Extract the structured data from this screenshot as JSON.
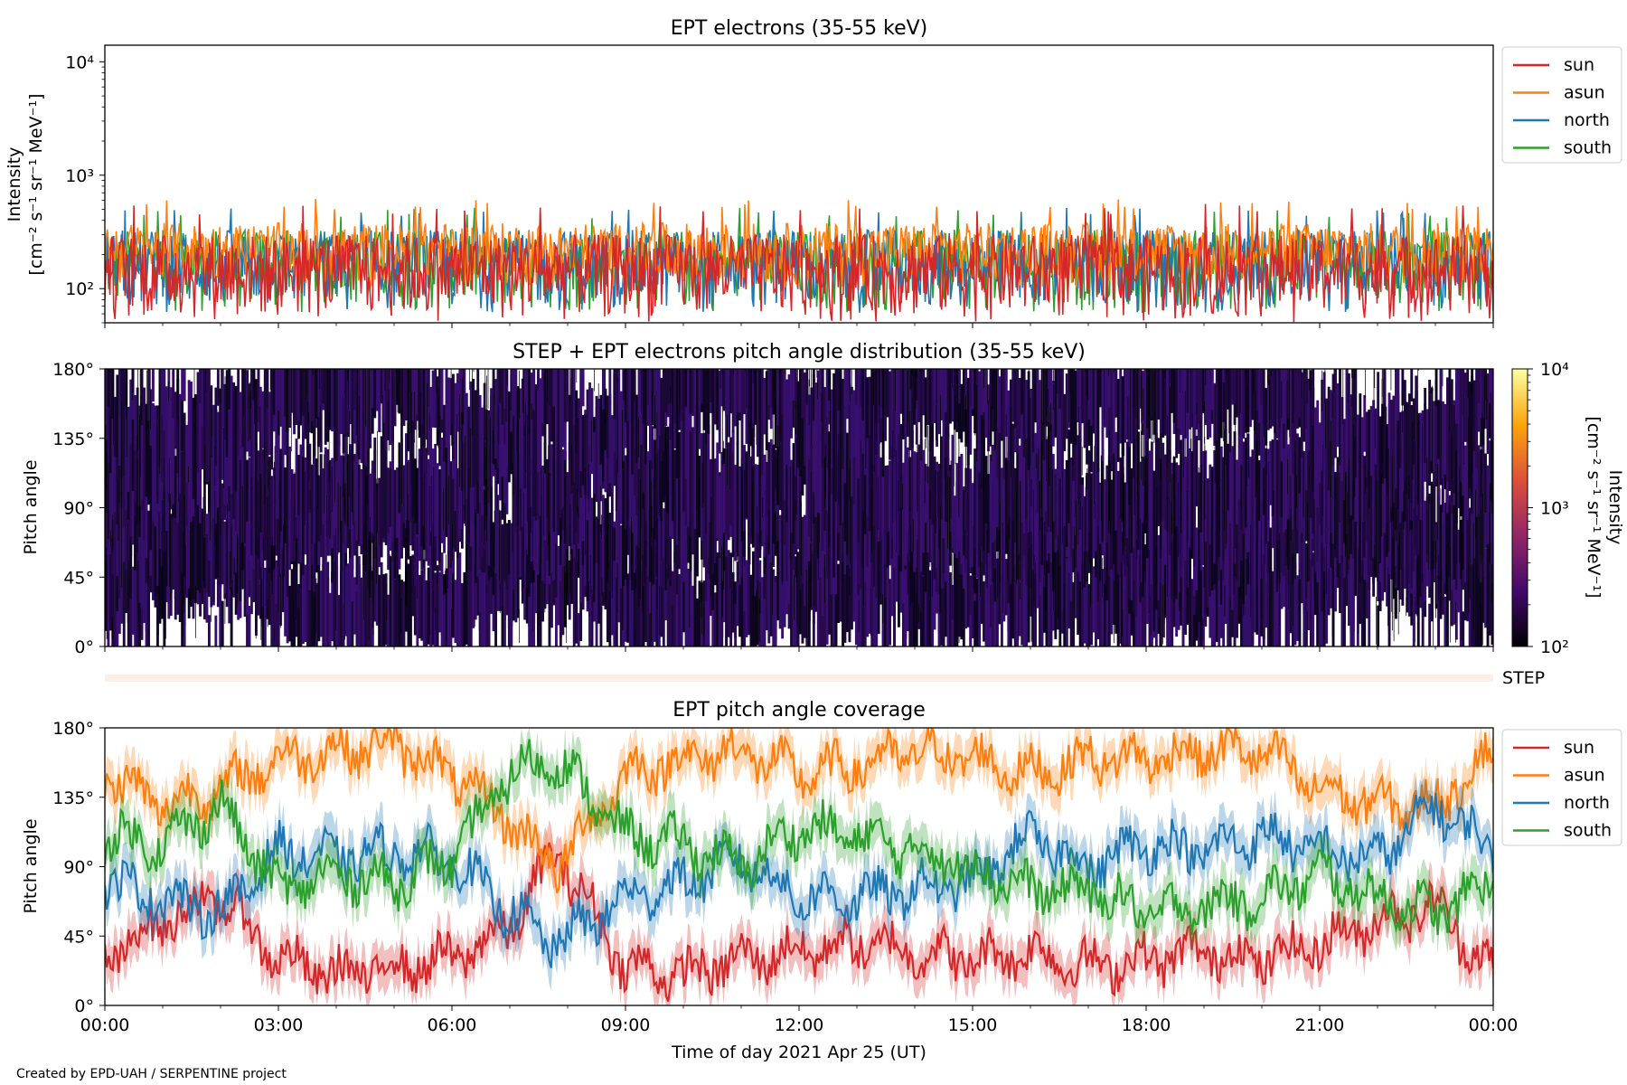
{
  "credit": "Created by EPD-UAH / SERPENTINE project",
  "colors": {
    "sun": "#d62728",
    "asun": "#ff7f0e",
    "north": "#1f77b4",
    "south": "#2ca02c",
    "step_band": "#fdeee6"
  },
  "step_label": "STEP",
  "chart_data": [
    {
      "type": "line",
      "title": "EPT electrons (35-55 keV)",
      "ylabel": "Intensity",
      "yunit": "[cm⁻² s⁻¹ sr⁻¹ MeV⁻¹]",
      "yscale": "log",
      "ylim": [
        50,
        14000
      ],
      "yticks": [
        {
          "value": 100,
          "label": "10²"
        },
        {
          "value": 1000,
          "label": "10³"
        },
        {
          "value": 10000,
          "label": "10⁴"
        }
      ],
      "xlim": [
        "2021-04-25 00:00",
        "2021-04-26 00:00"
      ],
      "legend": "outside-right",
      "series": [
        {
          "name": "sun",
          "typical_range": [
            50,
            300
          ],
          "peak": 560
        },
        {
          "name": "asun",
          "typical_range": [
            100,
            380
          ],
          "peak": 620
        },
        {
          "name": "north",
          "typical_range": [
            60,
            330
          ],
          "peak": 520
        },
        {
          "name": "south",
          "typical_range": [
            60,
            330
          ],
          "peak": 520
        }
      ]
    },
    {
      "type": "heatmap",
      "title": "STEP + EPT electrons pitch angle distribution (35-55 keV)",
      "ylabel": "Pitch angle",
      "ylim": [
        0,
        180
      ],
      "yticks": [
        "0°",
        "45°",
        "90°",
        "135°",
        "180°"
      ],
      "xlim": [
        "2021-04-25 00:00",
        "2021-04-26 00:00"
      ],
      "colorbar": {
        "label": "Intensity",
        "unit": "[cm⁻² s⁻¹ sr⁻¹ MeV⁻¹]",
        "scale": "log",
        "range": [
          100,
          10000
        ],
        "ticks": [
          "10²",
          "10³",
          "10⁴"
        ]
      },
      "dominant_level": 120
    },
    {
      "type": "line",
      "title": "EPT pitch angle coverage",
      "ylabel": "Pitch angle",
      "ylim": [
        0,
        180
      ],
      "yticks": [
        "0°",
        "45°",
        "90°",
        "135°",
        "180°"
      ],
      "xlabel": "Time of day 2021 Apr 25 (UT)",
      "xticks": [
        "00:00",
        "03:00",
        "06:00",
        "09:00",
        "12:00",
        "15:00",
        "18:00",
        "21:00",
        "00:00"
      ],
      "legend": "outside-right",
      "series": [
        {
          "name": "sun",
          "x_hours": [
            0,
            1,
            2,
            3,
            4,
            5,
            6,
            7,
            7.8,
            9,
            10,
            11,
            12,
            13,
            14,
            15,
            16,
            17,
            18,
            19,
            20,
            21,
            22,
            23,
            24
          ],
          "y": [
            30,
            55,
            70,
            30,
            20,
            25,
            30,
            50,
            100,
            25,
            20,
            30,
            35,
            40,
            35,
            30,
            35,
            25,
            30,
            35,
            30,
            40,
            55,
            65,
            20
          ]
        },
        {
          "name": "asun",
          "x_hours": [
            0,
            1,
            2,
            3,
            4,
            5,
            6,
            7,
            7.8,
            9,
            10,
            11,
            12,
            13,
            14,
            15,
            16,
            17,
            18,
            19,
            20,
            21,
            22,
            23,
            24
          ],
          "y": [
            150,
            130,
            140,
            160,
            165,
            170,
            150,
            120,
            90,
            150,
            160,
            165,
            150,
            155,
            165,
            160,
            150,
            160,
            160,
            165,
            165,
            140,
            130,
            130,
            165
          ]
        },
        {
          "name": "north",
          "x_hours": [
            0,
            1,
            2,
            3,
            4,
            5,
            6,
            7,
            7.8,
            9,
            10,
            11,
            12,
            13,
            14,
            15,
            16,
            17,
            18,
            19,
            20,
            21,
            22,
            23,
            24
          ],
          "y": [
            80,
            70,
            60,
            100,
            95,
            100,
            95,
            60,
            40,
            70,
            80,
            95,
            70,
            70,
            75,
            80,
            110,
            90,
            105,
            100,
            110,
            100,
            95,
            130,
            100
          ]
        },
        {
          "name": "south",
          "x_hours": [
            0,
            1,
            2,
            3,
            4,
            5,
            6,
            7,
            7.8,
            9,
            10,
            11,
            12,
            13,
            14,
            15,
            16,
            17,
            18,
            19,
            20,
            21,
            22,
            23,
            24
          ],
          "y": [
            110,
            105,
            130,
            75,
            85,
            80,
            95,
            150,
            160,
            110,
            105,
            90,
            115,
            110,
            100,
            90,
            75,
            75,
            60,
            65,
            70,
            85,
            70,
            60,
            80
          ]
        }
      ]
    }
  ]
}
